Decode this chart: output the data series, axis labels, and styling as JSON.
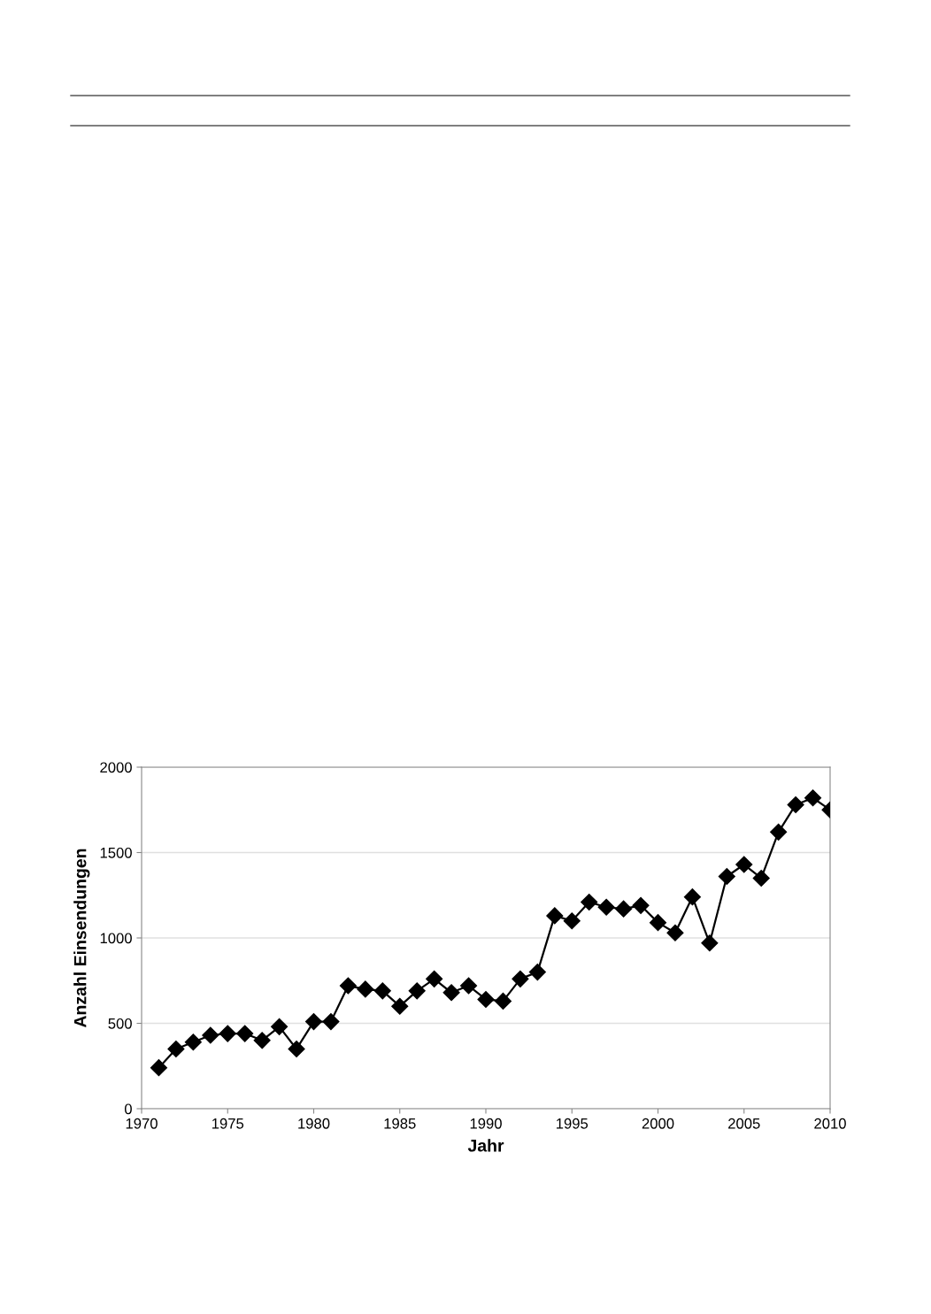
{
  "chart_data": {
    "type": "line",
    "xlabel": "Jahr",
    "ylabel": "Anzahl Einsendungen",
    "x": [
      1971,
      1972,
      1973,
      1974,
      1975,
      1976,
      1977,
      1978,
      1979,
      1980,
      1981,
      1982,
      1983,
      1984,
      1985,
      1986,
      1987,
      1988,
      1989,
      1990,
      1991,
      1992,
      1993,
      1994,
      1995,
      1996,
      1997,
      1998,
      1999,
      2000,
      2001,
      2002,
      2003,
      2004,
      2005,
      2006,
      2007,
      2008,
      2009,
      2010
    ],
    "series": [
      {
        "color": "#000000",
        "values": [
          240,
          350,
          390,
          430,
          440,
          440,
          400,
          480,
          350,
          510,
          510,
          720,
          700,
          690,
          600,
          690,
          760,
          680,
          720,
          640,
          630,
          760,
          800,
          1130,
          1100,
          1210,
          1180,
          1170,
          1190,
          1090,
          1030,
          1240,
          970,
          1360,
          1430,
          1350,
          1620,
          1780,
          1820,
          1750
        ]
      }
    ],
    "xlim": [
      1970,
      2010
    ],
    "xticks": [
      1970,
      1975,
      1980,
      1985,
      1990,
      1995,
      2000,
      2005,
      2010
    ],
    "ylim": [
      0,
      2000
    ],
    "yticks": [
      0,
      500,
      1000,
      1500,
      2000
    ],
    "grid": "y",
    "marker": "diamond",
    "line_style": "solid"
  }
}
